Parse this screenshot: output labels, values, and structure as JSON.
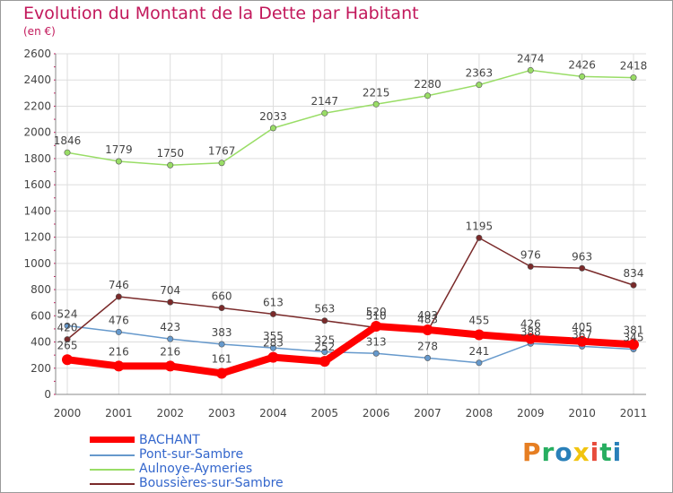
{
  "title": "Evolution du Montant de la Dette par Habitant",
  "subtitle": "(en €)",
  "logo": {
    "text": "Proxiti",
    "colors": [
      "#e67e22",
      "#27ae60",
      "#2980b9",
      "#f1c40f",
      "#e74c3c",
      "#27ae60",
      "#2980b9"
    ]
  },
  "chart_data": {
    "type": "line",
    "x": [
      "2000",
      "2001",
      "2002",
      "2003",
      "2004",
      "2005",
      "2006",
      "2007",
      "2008",
      "2009",
      "2010",
      "2011"
    ],
    "ylim": [
      0,
      2600
    ],
    "yticks": [
      "0",
      "200",
      "400",
      "600",
      "800",
      "1000",
      "1200",
      "1400",
      "1600",
      "1800",
      "2000",
      "2200",
      "2400",
      "2600"
    ],
    "grid": true,
    "legend_position": "bottom-left",
    "series": [
      {
        "name": "BACHANT",
        "color": "#ff0000",
        "values": [
          265,
          216,
          216,
          161,
          283,
          252,
          520,
          493,
          455,
          426,
          405,
          381
        ],
        "labels": [
          "265",
          "216",
          "216",
          "161",
          "283",
          "252",
          "520",
          "493",
          "455",
          "426",
          "405",
          "381"
        ]
      },
      {
        "name": "Pont-sur-Sambre",
        "color": "#6699cc",
        "values": [
          524,
          476,
          423,
          383,
          355,
          325,
          313,
          278,
          241,
          388,
          367,
          345
        ],
        "labels": [
          "524",
          "476",
          "423",
          "383",
          "355",
          "325",
          "313",
          "278",
          "241",
          "388",
          "367",
          "345"
        ]
      },
      {
        "name": "Aulnoye-Aymeries",
        "color": "#99dd66",
        "values": [
          1846,
          1779,
          1750,
          1767,
          2033,
          2147,
          2215,
          2280,
          2363,
          2474,
          2426,
          2418
        ],
        "labels": [
          "1846",
          "1779",
          "1750",
          "1767",
          "2033",
          "2147",
          "2215",
          "2280",
          "2363",
          "2474",
          "2426",
          "2418"
        ]
      },
      {
        "name": "Boussières-sur-Sambre",
        "color": "#7a2a2a",
        "values": [
          420,
          746,
          704,
          660,
          613,
          563,
          510,
          483,
          1195,
          976,
          963,
          834
        ],
        "labels": [
          "420",
          "746",
          "704",
          "660",
          "613",
          "563",
          "510",
          "483",
          "1195",
          "976",
          "963",
          "834"
        ]
      }
    ]
  }
}
